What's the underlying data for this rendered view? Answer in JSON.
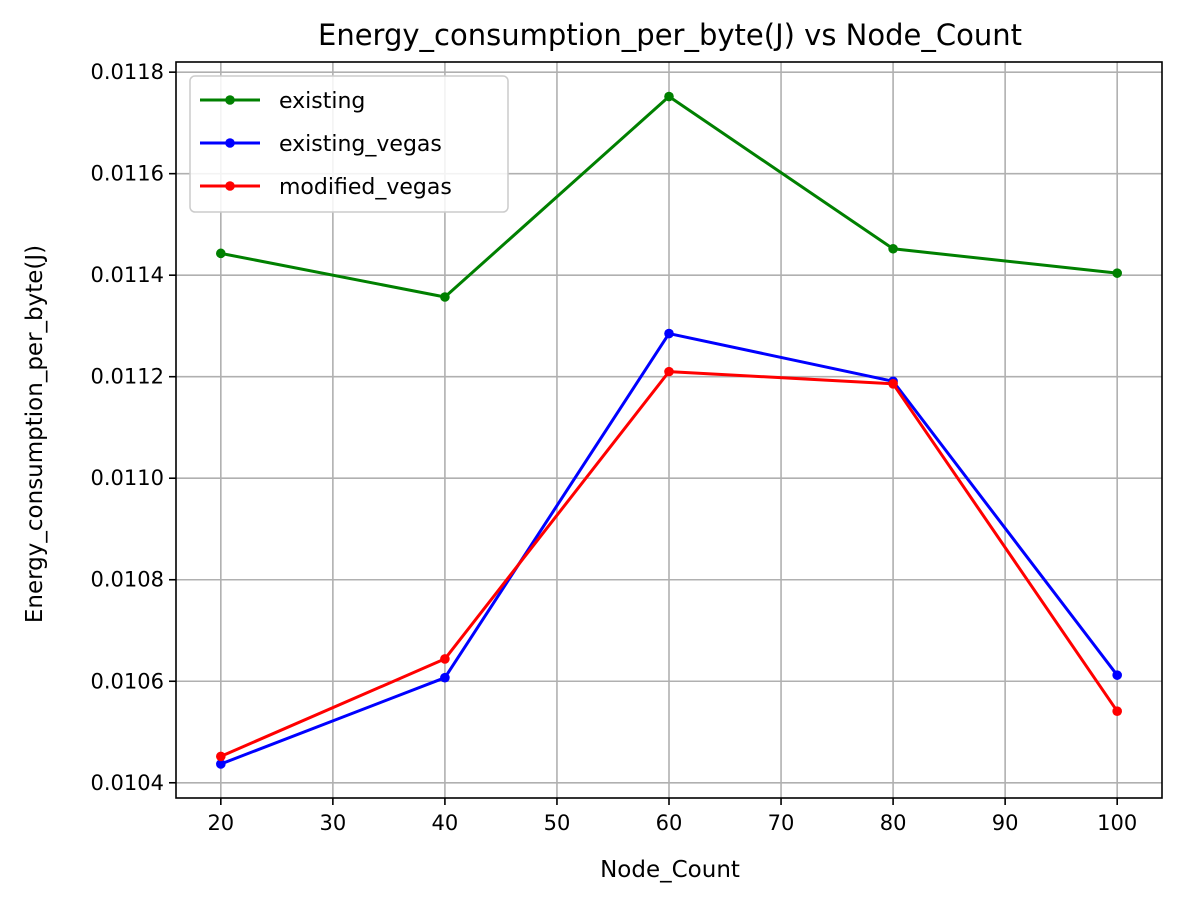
{
  "chart_data": {
    "type": "line",
    "title": "Energy_consumption_per_byte(J) vs Node_Count",
    "xlabel": "Node_Count",
    "ylabel": "Energy_consumption_per_byte(J)",
    "xlim": [
      16,
      104
    ],
    "ylim": [
      0.01037,
      0.01182
    ],
    "xticks": [
      20,
      30,
      40,
      50,
      60,
      70,
      80,
      90,
      100
    ],
    "xtick_labels": [
      "20",
      "30",
      "40",
      "50",
      "60",
      "70",
      "80",
      "90",
      "100"
    ],
    "yticks": [
      0.0104,
      0.0106,
      0.0108,
      0.011,
      0.0112,
      0.0114,
      0.0116,
      0.0118
    ],
    "ytick_labels": [
      "0.0104",
      "0.0106",
      "0.0108",
      "0.0110",
      "0.0112",
      "0.0114",
      "0.0116",
      "0.0118"
    ],
    "grid": true,
    "legend_position": "top-left",
    "x": [
      20,
      40,
      60,
      80,
      100
    ],
    "series": [
      {
        "name": "existing",
        "color": "#008000",
        "values": [
          0.011443,
          0.011357,
          0.011752,
          0.011452,
          0.011404
        ]
      },
      {
        "name": "existing_vegas",
        "color": "#0000ff",
        "values": [
          0.010437,
          0.010607,
          0.011285,
          0.011191,
          0.010612
        ]
      },
      {
        "name": "modified_vegas",
        "color": "#ff0000",
        "values": [
          0.010452,
          0.010644,
          0.01121,
          0.011186,
          0.010541
        ]
      }
    ]
  }
}
